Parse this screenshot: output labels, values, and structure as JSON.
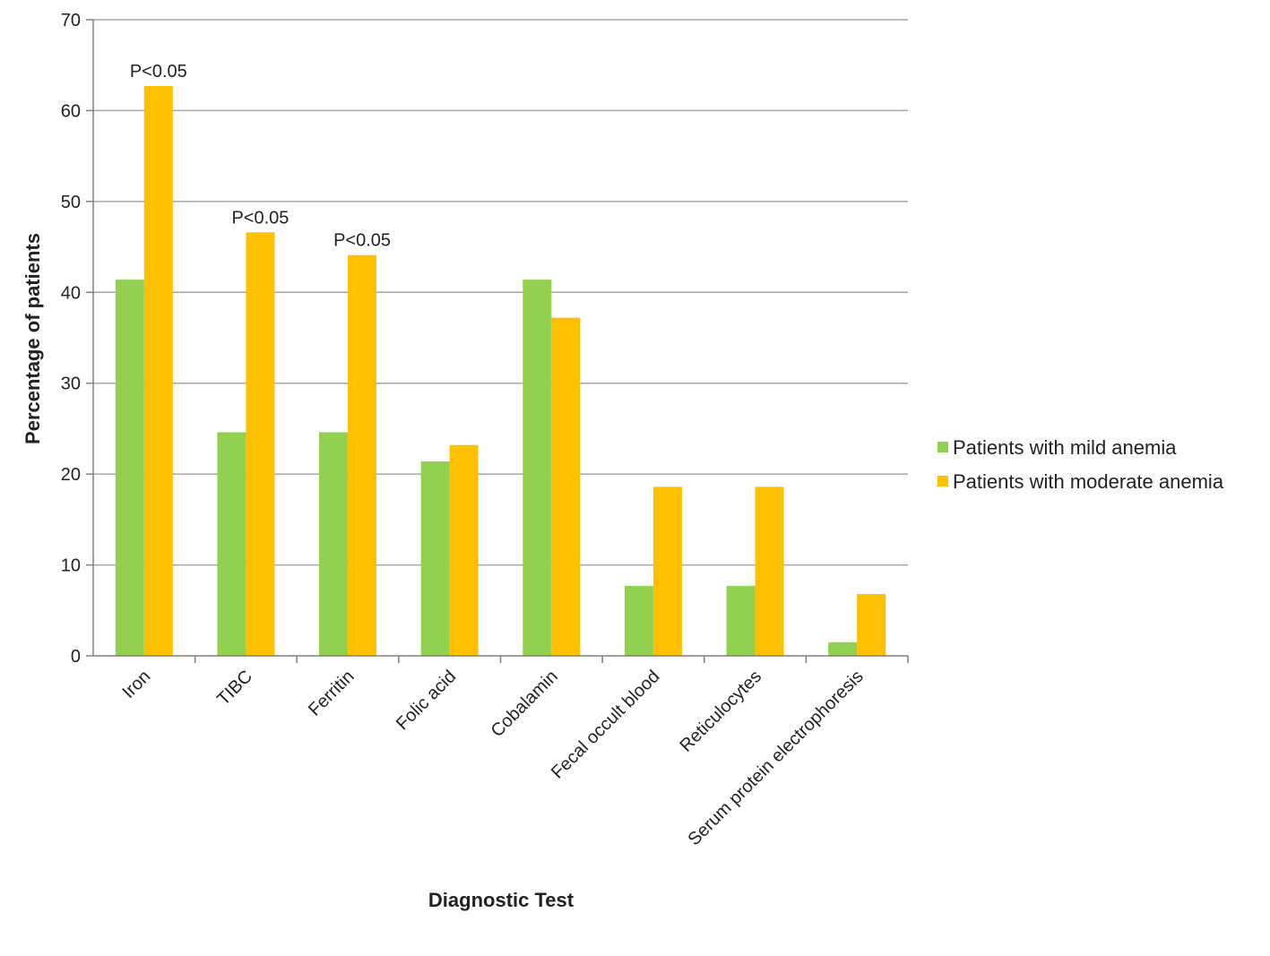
{
  "chart_data": {
    "type": "bar",
    "title": "",
    "xlabel": "Diagnostic Test",
    "ylabel": "Percentage of patients",
    "ylim": [
      0,
      70
    ],
    "yticks": [
      0,
      10,
      20,
      30,
      40,
      50,
      60,
      70
    ],
    "grid": "horizontal",
    "legend_position": "right",
    "categories": [
      "Iron",
      "TIBC",
      "Ferritin",
      "Folic acid",
      "Cobalamin",
      "Fecal occult blood",
      "Reticulocytes",
      "Serum protein electrophoresis"
    ],
    "series": [
      {
        "name": "Patients with mild anemia",
        "color": "#92D050",
        "values": [
          41.4,
          24.6,
          24.6,
          21.4,
          41.4,
          7.7,
          7.7,
          1.5
        ]
      },
      {
        "name": "Patients with moderate anemia",
        "color": "#FFC000",
        "values": [
          62.7,
          46.6,
          44.1,
          23.2,
          37.2,
          18.6,
          18.6,
          6.8
        ]
      }
    ],
    "annotations": [
      {
        "category": "Iron",
        "text": "P<0.05"
      },
      {
        "category": "TIBC",
        "text": "P<0.05"
      },
      {
        "category": "Ferritin",
        "text": "P<0.05"
      }
    ]
  }
}
